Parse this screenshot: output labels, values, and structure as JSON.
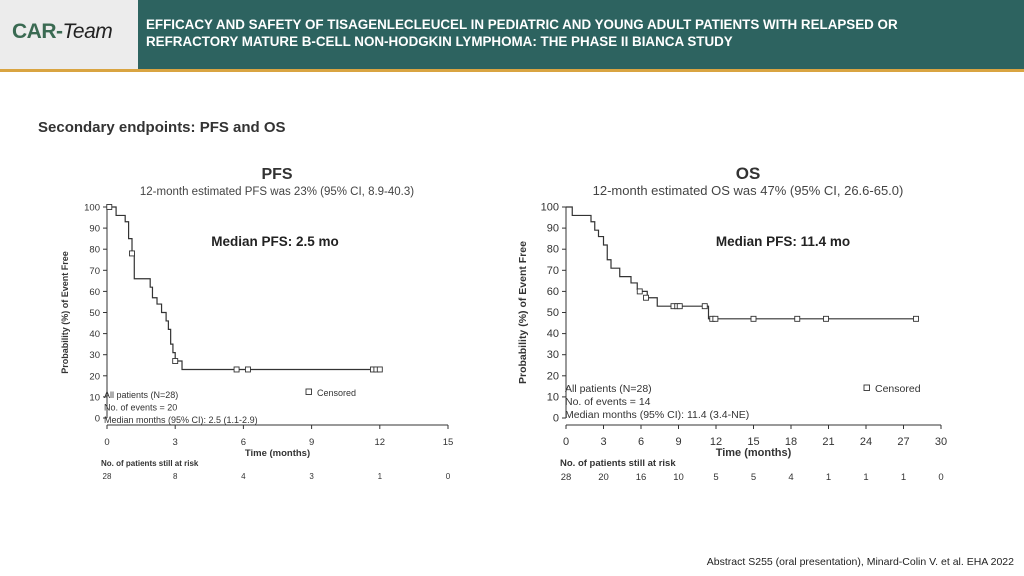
{
  "header": {
    "logo_main": "CAR",
    "logo_team": "Team",
    "title_line1": "EFFICACY AND SAFETY OF TISAGENLECLEUCEL IN PEDIATRIC AND YOUNG ADULT PATIENTS WITH RELAPSED OR",
    "title_line2": "REFRACTORY MATURE B-CELL NON-HODGKIN LYMPHOMA: THE PHASE II BIANCA STUDY"
  },
  "section_title": "Secondary endpoints: PFS and OS",
  "citation": "Abstract S255 (oral presentation), Minard-Colin V. et al. EHA 2022",
  "colors": {
    "header_bg": "#2d6360",
    "accent": "#d9a441",
    "logo_green": "#3a6a52",
    "line": "#333333"
  },
  "chart_data": [
    {
      "type": "line",
      "title": "PFS",
      "subtitle": "12-month estimated PFS was 23% (95% CI, 8.9-40.3)",
      "annotation": "Median PFS: 2.5 mo",
      "xlabel": "Time (months)",
      "ylabel": "Probability (%) of Event Free",
      "xlim": [
        0,
        15
      ],
      "ylim": [
        0,
        100
      ],
      "xticks": [
        "0",
        "3",
        "6",
        "9",
        "12",
        "15"
      ],
      "yticks": [
        "0",
        "10",
        "20",
        "30",
        "40",
        "50",
        "60",
        "70",
        "80",
        "90",
        "100"
      ],
      "legend": "Censored",
      "stats": [
        "All patients (N=28)",
        "No. of events = 20",
        "Median months (95% CI): 2.5 (1.1-2.9)"
      ],
      "risk_title": "No. of patients still at risk",
      "risk_values": [
        "28",
        "8",
        "4",
        "3",
        "1",
        "0"
      ],
      "series": [
        {
          "step_x": [
            0,
            0.4,
            0.8,
            0.95,
            1.1,
            1.2,
            1.9,
            2.0,
            2.2,
            2.4,
            2.6,
            2.7,
            2.8,
            2.9,
            3.0,
            3.3,
            12.1
          ],
          "step_y": [
            100,
            96,
            93,
            85,
            78,
            66,
            62,
            57,
            54,
            50,
            46,
            42,
            35,
            31,
            27,
            23,
            23
          ],
          "censored_x": [
            0.1,
            1.1,
            3.0,
            5.7,
            6.2,
            11.7,
            11.85,
            12.0
          ],
          "censored_y": [
            100,
            78,
            27,
            23,
            23,
            23,
            23,
            23
          ]
        }
      ]
    },
    {
      "type": "line",
      "title": "OS",
      "subtitle": "12-month estimated OS was 47% (95% CI, 26.6-65.0)",
      "annotation": "Median PFS: 11.4 mo",
      "xlabel": "Time (months)",
      "ylabel": "Probability (%) of Event Free",
      "xlim": [
        0,
        30
      ],
      "ylim": [
        0,
        100
      ],
      "xticks": [
        "0",
        "3",
        "6",
        "9",
        "12",
        "15",
        "18",
        "21",
        "24",
        "27",
        "30"
      ],
      "yticks": [
        "0",
        "10",
        "20",
        "30",
        "40",
        "50",
        "60",
        "70",
        "80",
        "90",
        "100"
      ],
      "legend": "Censored",
      "stats": [
        "All patients (N=28)",
        "No. of events = 14",
        "Median months (95% CI): 11.4 (3.4-NE)"
      ],
      "risk_title": "No. of patients still at risk",
      "risk_values": [
        "28",
        "20",
        "16",
        "10",
        "5",
        "5",
        "4",
        "1",
        "1",
        "1",
        "0"
      ],
      "series": [
        {
          "step_x": [
            0,
            0.5,
            2.0,
            2.3,
            2.6,
            3.0,
            3.3,
            3.6,
            4.3,
            5.2,
            5.7,
            6.0,
            6.5,
            7.3,
            11.2,
            11.4,
            28.0
          ],
          "step_y": [
            100,
            96,
            93,
            89,
            86,
            82,
            75,
            71,
            67,
            64,
            61,
            60,
            57,
            53,
            53,
            47,
            47
          ],
          "censored_x": [
            5.9,
            6.4,
            8.6,
            8.9,
            9.1,
            11.1,
            11.7,
            11.95,
            15.0,
            18.5,
            20.8,
            28.0
          ],
          "censored_y": [
            60,
            57,
            53,
            53,
            53,
            53,
            47,
            47,
            47,
            47,
            47,
            47
          ]
        }
      ]
    }
  ]
}
